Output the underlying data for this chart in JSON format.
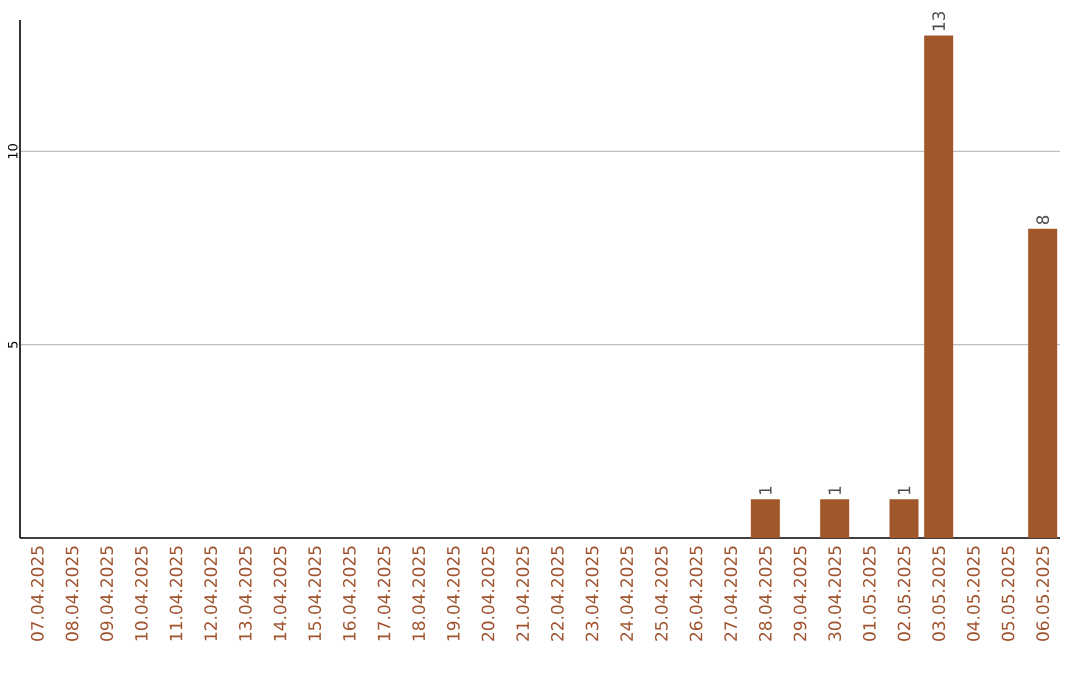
{
  "chart_data": {
    "type": "bar",
    "categories": [
      "07.04.2025",
      "08.04.2025",
      "09.04.2025",
      "10.04.2025",
      "11.04.2025",
      "12.04.2025",
      "13.04.2025",
      "14.04.2025",
      "15.04.2025",
      "16.04.2025",
      "17.04.2025",
      "18.04.2025",
      "19.04.2025",
      "20.04.2025",
      "21.04.2025",
      "22.04.2025",
      "23.04.2025",
      "24.04.2025",
      "25.04.2025",
      "26.04.2025",
      "27.04.2025",
      "28.04.2025",
      "29.04.2025",
      "30.04.2025",
      "01.05.2025",
      "02.05.2025",
      "03.05.2025",
      "04.05.2025",
      "05.05.2025",
      "06.05.2025"
    ],
    "values": [
      0,
      0,
      0,
      0,
      0,
      0,
      0,
      0,
      0,
      0,
      0,
      0,
      0,
      0,
      0,
      0,
      0,
      0,
      0,
      0,
      0,
      1,
      0,
      1,
      0,
      1,
      13,
      0,
      0,
      8
    ],
    "value_labels": [
      null,
      null,
      null,
      null,
      null,
      null,
      null,
      null,
      null,
      null,
      null,
      null,
      null,
      null,
      null,
      null,
      null,
      null,
      null,
      null,
      null,
      "1",
      null,
      "1",
      null,
      "1",
      "13",
      null,
      null,
      "8"
    ],
    "color": "#a0582a",
    "ylim": [
      0,
      13.4
    ],
    "yticks": [
      5,
      10
    ],
    "grid": "y"
  }
}
